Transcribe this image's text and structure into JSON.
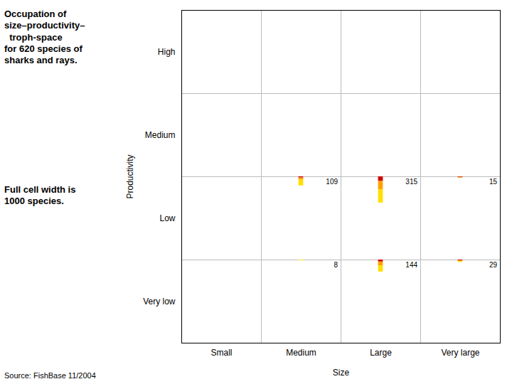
{
  "chart_data": {
    "type": "stacked_bar_grid",
    "title": "Occupation of\nsize–productivity–\n  troph-space\nfor 620 species of\nsharks and rays.",
    "subtitle": "Full cell width is\n1000 species.",
    "caption": "Source: FishBase 11/2004",
    "xlabel": "Size",
    "ylabel": "Productivity",
    "x_categories": [
      "Small",
      "Medium",
      "Large",
      "Very large"
    ],
    "y_categories": [
      "High",
      "Medium",
      "Low",
      "Very low"
    ],
    "cell_full_value": 1000,
    "series": [
      {
        "color": "#CC0000"
      },
      {
        "color": "#FFA000"
      },
      {
        "color": "#FFE000"
      }
    ],
    "cells": [
      {
        "x": "Medium",
        "y": "Low",
        "total": 109,
        "values": [
          0.128,
          0.229,
          0.643
        ]
      },
      {
        "x": "Large",
        "y": "Low",
        "total": 315,
        "values": [
          0.175,
          0.317,
          0.508
        ]
      },
      {
        "x": "Very large",
        "y": "Low",
        "total": 15,
        "values": [
          0.467,
          0.533,
          0.0
        ]
      },
      {
        "x": "Medium",
        "y": "Very low",
        "total": 8,
        "values": [
          0.0,
          0.0,
          1.0
        ]
      },
      {
        "x": "Large",
        "y": "Very low",
        "total": 144,
        "values": [
          0.167,
          0.312,
          0.521
        ]
      },
      {
        "x": "Very large",
        "y": "Very low",
        "total": 29,
        "values": [
          0.31,
          0.345,
          0.345
        ]
      }
    ],
    "grid": true,
    "data_labels": true
  }
}
